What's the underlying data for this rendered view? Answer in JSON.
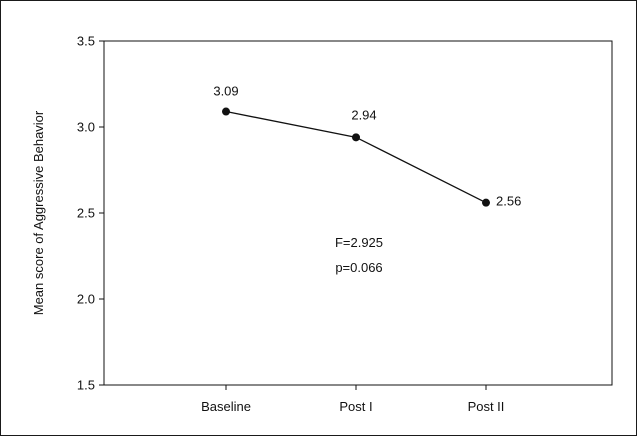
{
  "chart_data": {
    "type": "line",
    "title": "",
    "xlabel": "",
    "ylabel": "Mean score of Aggressive Behavior",
    "categories": [
      "Baseline",
      "Post I",
      "Post II"
    ],
    "series": [
      {
        "values": [
          3.09,
          2.94,
          2.56
        ]
      }
    ],
    "data_labels": [
      "3.09",
      "2.94",
      "2.56"
    ],
    "ylim": [
      1.5,
      3.5
    ],
    "yticks": [
      "1.5",
      "2.0",
      "2.5",
      "3.0",
      "3.5"
    ],
    "grid": false,
    "legend": "none",
    "annotations": [
      "F=2.925",
      "p=0.066"
    ],
    "colors": {
      "line": "#111111",
      "marker": "#111111",
      "axis": "#111111"
    }
  }
}
